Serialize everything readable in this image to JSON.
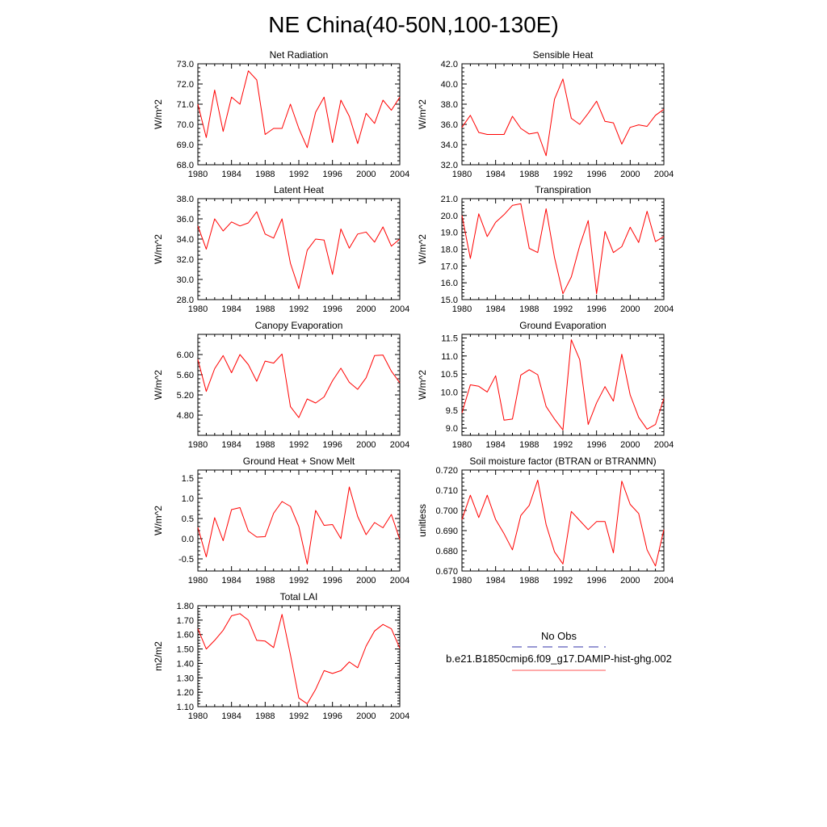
{
  "figure": {
    "title": "NE China(40-50N,100-130E)"
  },
  "x_axis": {
    "range": [
      1980,
      2004
    ],
    "ticks": [
      1980,
      1984,
      1988,
      1992,
      1996,
      2000,
      2004
    ]
  },
  "chart_data": [
    {
      "type": "line",
      "title": "Net Radiation",
      "ylabel": "W/m^2",
      "ylim": [
        68.0,
        73.0
      ],
      "yticks": [
        "68.0",
        "69.0",
        "70.0",
        "71.0",
        "72.0",
        "73.0"
      ],
      "series": [
        {
          "color": "#ff0000",
          "x": [
            1980,
            1981,
            1982,
            1983,
            1984,
            1985,
            1986,
            1987,
            1988,
            1989,
            1990,
            1991,
            1992,
            1993,
            1994,
            1995,
            1996,
            1997,
            1998,
            1999,
            2000,
            2001,
            2002,
            2003,
            2004
          ],
          "values": [
            71.0,
            69.35,
            71.7,
            69.65,
            71.35,
            71.0,
            72.65,
            72.2,
            69.5,
            69.8,
            69.8,
            71.0,
            69.8,
            68.85,
            70.6,
            71.35,
            69.1,
            71.2,
            70.4,
            69.05,
            70.55,
            70.05,
            71.2,
            70.7,
            71.35
          ]
        }
      ]
    },
    {
      "type": "line",
      "title": "Sensible Heat",
      "ylabel": "W/m^2",
      "ylim": [
        32.0,
        42.0
      ],
      "yticks": [
        "32.0",
        "34.0",
        "36.0",
        "38.0",
        "40.0",
        "42.0"
      ],
      "series": [
        {
          "color": "#ff0000",
          "x": [
            1980,
            1981,
            1982,
            1983,
            1984,
            1985,
            1986,
            1987,
            1988,
            1989,
            1990,
            1991,
            1992,
            1993,
            1994,
            1995,
            1996,
            1997,
            1998,
            1999,
            2000,
            2001,
            2002,
            2003,
            2004
          ],
          "values": [
            35.7,
            36.9,
            35.2,
            35.0,
            35.0,
            35.0,
            36.8,
            35.6,
            35.05,
            35.2,
            32.9,
            38.5,
            40.5,
            36.6,
            36.0,
            37.1,
            38.3,
            36.3,
            36.15,
            34.05,
            35.7,
            35.95,
            35.8,
            36.9,
            37.5
          ]
        }
      ]
    },
    {
      "type": "line",
      "title": "Latent Heat",
      "ylabel": "W/m^2",
      "ylim": [
        28.0,
        38.0
      ],
      "yticks": [
        "28.0",
        "30.0",
        "32.0",
        "34.0",
        "36.0",
        "38.0"
      ],
      "series": [
        {
          "color": "#ff0000",
          "x": [
            1980,
            1981,
            1982,
            1983,
            1984,
            1985,
            1986,
            1987,
            1988,
            1989,
            1990,
            1991,
            1992,
            1993,
            1994,
            1995,
            1996,
            1997,
            1998,
            1999,
            2000,
            2001,
            2002,
            2003,
            2004
          ],
          "values": [
            35.3,
            33.0,
            36.0,
            34.8,
            35.7,
            35.3,
            35.6,
            36.7,
            34.5,
            34.1,
            36.0,
            31.6,
            29.1,
            32.9,
            34.0,
            33.9,
            30.5,
            35.0,
            33.1,
            34.5,
            34.7,
            33.7,
            35.2,
            33.3,
            34.0
          ]
        }
      ]
    },
    {
      "type": "line",
      "title": "Transpiration",
      "ylabel": "W/m^2",
      "ylim": [
        15.0,
        21.0
      ],
      "yticks": [
        "15.0",
        "16.0",
        "17.0",
        "18.0",
        "19.0",
        "20.0",
        "21.0"
      ],
      "series": [
        {
          "color": "#ff0000",
          "x": [
            1980,
            1981,
            1982,
            1983,
            1984,
            1985,
            1986,
            1987,
            1988,
            1989,
            1990,
            1991,
            1992,
            1993,
            1994,
            1995,
            1996,
            1997,
            1998,
            1999,
            2000,
            2001,
            2002,
            2003,
            2004
          ],
          "values": [
            20.0,
            17.45,
            20.1,
            18.75,
            19.6,
            20.05,
            20.6,
            20.7,
            18.05,
            17.8,
            20.4,
            17.5,
            15.35,
            16.35,
            18.2,
            19.7,
            15.35,
            19.05,
            17.8,
            18.15,
            19.3,
            18.4,
            20.25,
            18.45,
            18.75
          ]
        }
      ]
    },
    {
      "type": "line",
      "title": "Canopy Evaporation",
      "ylabel": "W/m^2",
      "ylim": [
        4.4,
        6.4
      ],
      "yticks": [
        "4.80",
        "5.20",
        "5.60",
        "6.00"
      ],
      "series": [
        {
          "color": "#ff0000",
          "x": [
            1980,
            1981,
            1982,
            1983,
            1984,
            1985,
            1986,
            1987,
            1988,
            1989,
            1990,
            1991,
            1992,
            1993,
            1994,
            1995,
            1996,
            1997,
            1998,
            1999,
            2000,
            2001,
            2002,
            2003,
            2004
          ],
          "values": [
            5.9,
            5.27,
            5.72,
            5.98,
            5.64,
            6.0,
            5.8,
            5.47,
            5.87,
            5.83,
            6.01,
            4.97,
            4.75,
            5.12,
            5.04,
            5.16,
            5.48,
            5.73,
            5.45,
            5.31,
            5.54,
            5.98,
            5.99,
            5.67,
            5.44
          ]
        }
      ]
    },
    {
      "type": "line",
      "title": "Ground Evaporation",
      "ylabel": "W/m^2",
      "ylim": [
        8.8,
        11.6
      ],
      "yticks": [
        "9.0",
        "9.5",
        "10.0",
        "10.5",
        "11.0",
        "11.5"
      ],
      "series": [
        {
          "color": "#ff0000",
          "x": [
            1980,
            1981,
            1982,
            1983,
            1984,
            1985,
            1986,
            1987,
            1988,
            1989,
            1990,
            1991,
            1992,
            1993,
            1994,
            1995,
            1996,
            1997,
            1998,
            1999,
            2000,
            2001,
            2002,
            2003,
            2004
          ],
          "values": [
            9.42,
            10.2,
            10.16,
            10.0,
            10.45,
            9.22,
            9.25,
            10.47,
            10.62,
            10.48,
            9.6,
            9.25,
            8.95,
            11.45,
            10.9,
            9.1,
            9.7,
            10.15,
            9.75,
            11.05,
            9.92,
            9.3,
            8.97,
            9.1,
            9.82
          ]
        }
      ]
    },
    {
      "type": "line",
      "title": "Ground Heat + Snow Melt",
      "ylabel": "W/m^2",
      "ylim": [
        -0.8,
        1.7
      ],
      "yticks": [
        "-0.5",
        "0.0",
        "0.5",
        "1.0",
        "1.5"
      ],
      "series": [
        {
          "color": "#ff0000",
          "x": [
            1980,
            1981,
            1982,
            1983,
            1984,
            1985,
            1986,
            1987,
            1988,
            1989,
            1990,
            1991,
            1992,
            1993,
            1994,
            1995,
            1996,
            1997,
            1998,
            1999,
            2000,
            2001,
            2002,
            2003,
            2004
          ],
          "values": [
            0.28,
            -0.45,
            0.52,
            -0.05,
            0.72,
            0.77,
            0.19,
            0.04,
            0.05,
            0.63,
            0.92,
            0.8,
            0.3,
            -0.63,
            0.7,
            0.33,
            0.35,
            0.0,
            1.28,
            0.55,
            0.1,
            0.4,
            0.27,
            0.6,
            -0.02
          ]
        }
      ]
    },
    {
      "type": "line",
      "title": "Soil moisture factor (BTRAN or BTRANMN)",
      "ylabel": "unitless",
      "ylim": [
        0.67,
        0.72
      ],
      "yticks": [
        "0.670",
        "0.680",
        "0.690",
        "0.700",
        "0.710",
        "0.720"
      ],
      "series": [
        {
          "color": "#ff0000",
          "x": [
            1980,
            1981,
            1982,
            1983,
            1984,
            1985,
            1986,
            1987,
            1988,
            1989,
            1990,
            1991,
            1992,
            1993,
            1994,
            1995,
            1996,
            1997,
            1998,
            1999,
            2000,
            2001,
            2002,
            2003,
            2004
          ],
          "values": [
            0.6955,
            0.7075,
            0.6965,
            0.7075,
            0.6955,
            0.6885,
            0.6805,
            0.6975,
            0.7025,
            0.715,
            0.693,
            0.6795,
            0.6735,
            0.6995,
            0.695,
            0.6905,
            0.6945,
            0.6945,
            0.679,
            0.7145,
            0.703,
            0.6985,
            0.6805,
            0.6725,
            0.6905
          ]
        }
      ]
    },
    {
      "type": "line",
      "title": "Total LAI",
      "ylabel": "m2/m2",
      "ylim": [
        1.1,
        1.8
      ],
      "yticks": [
        "1.10",
        "1.20",
        "1.30",
        "1.40",
        "1.50",
        "1.60",
        "1.70",
        "1.80"
      ],
      "series": [
        {
          "color": "#ff0000",
          "x": [
            1980,
            1981,
            1982,
            1983,
            1984,
            1985,
            1986,
            1987,
            1988,
            1989,
            1990,
            1991,
            1992,
            1993,
            1994,
            1995,
            1996,
            1997,
            1998,
            1999,
            2000,
            2001,
            2002,
            2003,
            2004
          ],
          "values": [
            1.64,
            1.5,
            1.56,
            1.63,
            1.73,
            1.745,
            1.7,
            1.56,
            1.555,
            1.51,
            1.74,
            1.46,
            1.16,
            1.12,
            1.22,
            1.35,
            1.33,
            1.35,
            1.41,
            1.37,
            1.52,
            1.625,
            1.67,
            1.64,
            1.505
          ]
        }
      ]
    }
  ],
  "legend": {
    "entries": [
      {
        "label": "No Obs",
        "color": "#3333aa",
        "style": "dashed"
      },
      {
        "label": "b.e21.B1850cmip6.f09_g17.DAMIP-hist-ghg.002",
        "color": "#ff5555",
        "style": "solid"
      }
    ]
  }
}
